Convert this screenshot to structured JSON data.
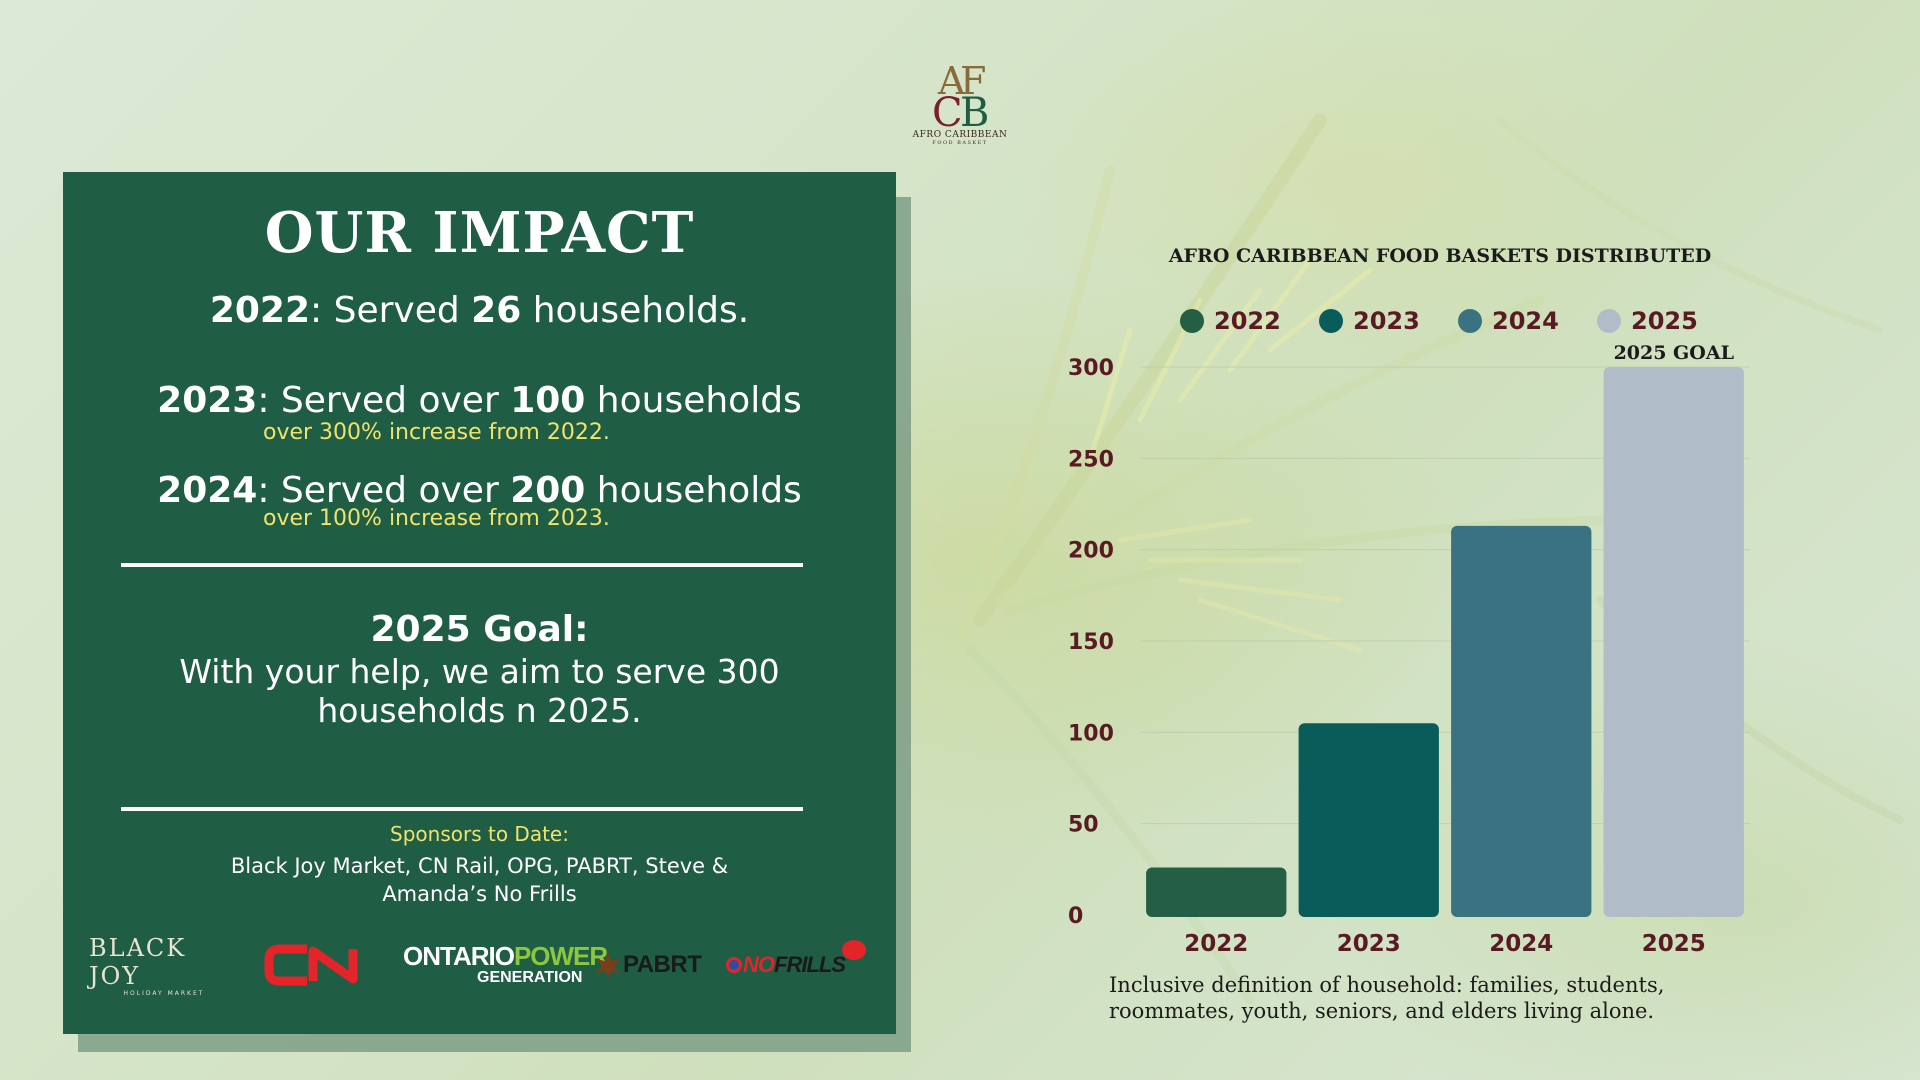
{
  "logo": {
    "monogram": "ACFB",
    "name": "AFRO CARIBBEAN",
    "sub": "FOOD BASKET"
  },
  "impact": {
    "title": "OUR IMPACT",
    "stats": [
      {
        "year": "2022",
        "pre": ": Served ",
        "num": "26",
        "post": " households.",
        "note": ""
      },
      {
        "year": "2023",
        "pre": ": Served over ",
        "num": "100",
        "post": " households",
        "note": "over 300% increase from 2022."
      },
      {
        "year": "2024",
        "pre": ": Served over ",
        "num": "200",
        "post": " households",
        "note": "over 100% increase from 2023."
      }
    ],
    "goal_head": "2025 Goal:",
    "goal_text": "With your help, we aim to serve 300 households n 2025.",
    "sponsors_head": "Sponsors to Date:",
    "sponsors_list": "Black Joy Market, CN Rail, OPG, PABRT, Steve & Amanda’s No Frills"
  },
  "sponsor_logos": {
    "black_joy": "BLACK JOY",
    "black_joy_sub": "HOLIDAY MARKET",
    "cn": "CN",
    "opg_ontario": "ONTARIO",
    "opg_power": "POWER",
    "opg_generation": "GENERATION",
    "pabrt": "PABRT",
    "nofrills_no": "NO",
    "nofrills_frills": "FRILLS"
  },
  "colors": {
    "panel": "#1f5d45",
    "accent_yellow": "#f0e36b",
    "axis_text": "#5a1a24"
  },
  "chart_data": {
    "type": "bar",
    "title": "AFRO CARIBBEAN FOOD BASKETS DISTRIBUTED",
    "categories": [
      "2022",
      "2023",
      "2024",
      "2025"
    ],
    "values": [
      26,
      105,
      213,
      300
    ],
    "colors": [
      "#245e45",
      "#0a5c5b",
      "#3b7282",
      "#b0bcc7"
    ],
    "legend": [
      "2022",
      "2023",
      "2024",
      "2025"
    ],
    "legend_position": "top",
    "annotation": "2025 GOAL",
    "yticks": [
      0,
      50,
      100,
      150,
      200,
      250,
      300
    ],
    "ylim": [
      0,
      300
    ],
    "grid": true,
    "xlabel": "",
    "ylabel": "",
    "note": "Inclusive definition of household: families, students, roommates, youth, seniors, and elders living alone."
  }
}
